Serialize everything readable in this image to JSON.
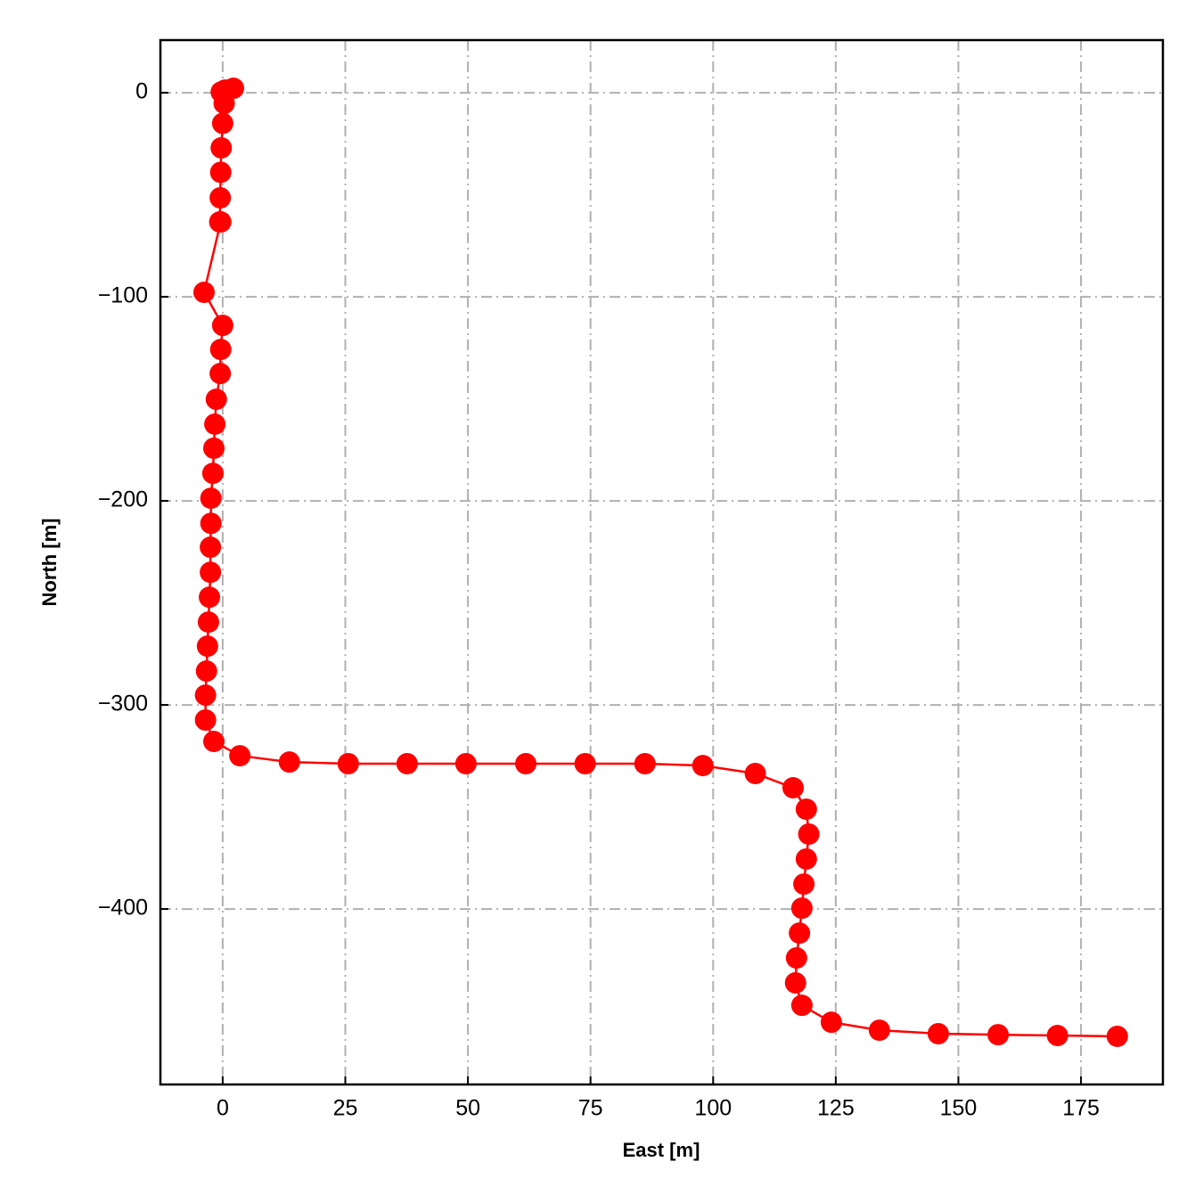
{
  "chart_data": {
    "type": "line",
    "x_label": "East [m]",
    "y_label": "North [m]",
    "x": [
      -0.3,
      0.5,
      2.2,
      0.3,
      0,
      -0.3,
      -0.4,
      -0.5,
      -0.6,
      -0.4,
      -3.8,
      0,
      -0.4,
      -0.5,
      -1.3,
      -1.6,
      -1.8,
      -2,
      -2.4,
      -2.4,
      -2.5,
      -2.5,
      -2.7,
      -2.9,
      -3.1,
      -3.3,
      -3.5,
      -3.5,
      -1.8,
      3.5,
      13.6,
      25.6,
      37.6,
      49.6,
      61.8,
      73.9,
      86.1,
      97.9,
      108.6,
      116.3,
      119,
      119.5,
      119,
      118.5,
      118.1,
      117.6,
      117,
      116.8,
      118.1,
      124.1,
      133.9,
      145.9,
      158.1,
      170.2,
      182.4
    ],
    "values": [
      0.4,
      1.3,
      2.2,
      -5.2,
      -15,
      -27,
      -39,
      -51.5,
      -63.3,
      -63.3,
      -97.8,
      -114,
      -125.8,
      -137.6,
      -150.2,
      -162.4,
      -174.2,
      -186.5,
      -198.7,
      -211,
      -222.7,
      -235,
      -247.2,
      -259.4,
      -271.2,
      -283.4,
      -295.2,
      -307.4,
      -317.9,
      -324.9,
      -328,
      -328.8,
      -328.8,
      -328.8,
      -328.8,
      -328.8,
      -328.8,
      -329.7,
      -333.6,
      -340.6,
      -351.1,
      -363.3,
      -375.5,
      -387.8,
      -399.6,
      -411.8,
      -424,
      -436.2,
      -447.2,
      -455.5,
      -459.4,
      -461.1,
      -461.6,
      -462,
      -462.4
    ],
    "color": "#ff0000",
    "xlim": [
      -12.7,
      191.7
    ],
    "ylim": [
      -486,
      25.8
    ],
    "xticks": [
      0,
      25,
      50,
      75,
      100,
      125,
      150,
      175
    ],
    "yticks": [
      0,
      {
        "value": -100,
        "label": "−100"
      },
      {
        "value": -200,
        "label": "−200"
      },
      {
        "value": -300,
        "label": "−300"
      },
      {
        "value": -400,
        "label": "−400"
      }
    ],
    "grid": true
  }
}
